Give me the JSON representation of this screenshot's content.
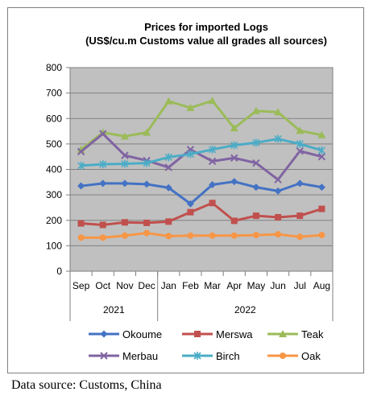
{
  "chart_data": {
    "type": "line",
    "title": "Prices for imported Logs",
    "subtitle": "(US$/cu.m Customs value all grades all sources)",
    "categories": [
      "Sep",
      "Oct",
      "Nov",
      "Dec",
      "Jan",
      "Feb",
      "Mar",
      "Apr",
      "May",
      "Jun",
      "Jul",
      "Aug"
    ],
    "year_groups": [
      {
        "label": "2021",
        "count": 4
      },
      {
        "label": "2022",
        "count": 8
      }
    ],
    "ylim": [
      0,
      800
    ],
    "yticks": [
      0,
      100,
      200,
      300,
      400,
      500,
      600,
      700,
      800
    ],
    "grid": true,
    "plot_background": "#c0c0c0",
    "legend_position": "bottom",
    "series": [
      {
        "name": "Okoume",
        "color": "#4472c4",
        "marker": "diamond",
        "values": [
          335,
          345,
          345,
          342,
          328,
          265,
          340,
          352,
          330,
          315,
          345,
          330
        ]
      },
      {
        "name": "Merswa",
        "color": "#c0504d",
        "marker": "square",
        "values": [
          188,
          182,
          192,
          190,
          195,
          232,
          268,
          198,
          218,
          212,
          218,
          245
        ]
      },
      {
        "name": "Teak",
        "color": "#9bbb59",
        "marker": "triangle",
        "values": [
          478,
          545,
          530,
          545,
          668,
          642,
          670,
          562,
          630,
          625,
          552,
          535
        ]
      },
      {
        "name": "Merbau",
        "color": "#8064a2",
        "marker": "x",
        "values": [
          470,
          540,
          455,
          435,
          408,
          478,
          432,
          445,
          425,
          360,
          472,
          450
        ]
      },
      {
        "name": "Birch",
        "color": "#4bacc6",
        "marker": "star",
        "values": [
          415,
          420,
          422,
          425,
          448,
          460,
          478,
          495,
          505,
          520,
          500,
          475
        ]
      },
      {
        "name": "Oak",
        "color": "#f79646",
        "marker": "circle",
        "values": [
          132,
          132,
          140,
          150,
          138,
          140,
          140,
          140,
          142,
          145,
          135,
          142
        ]
      }
    ]
  },
  "footer": {
    "source_note": "Data source: Customs, China"
  }
}
